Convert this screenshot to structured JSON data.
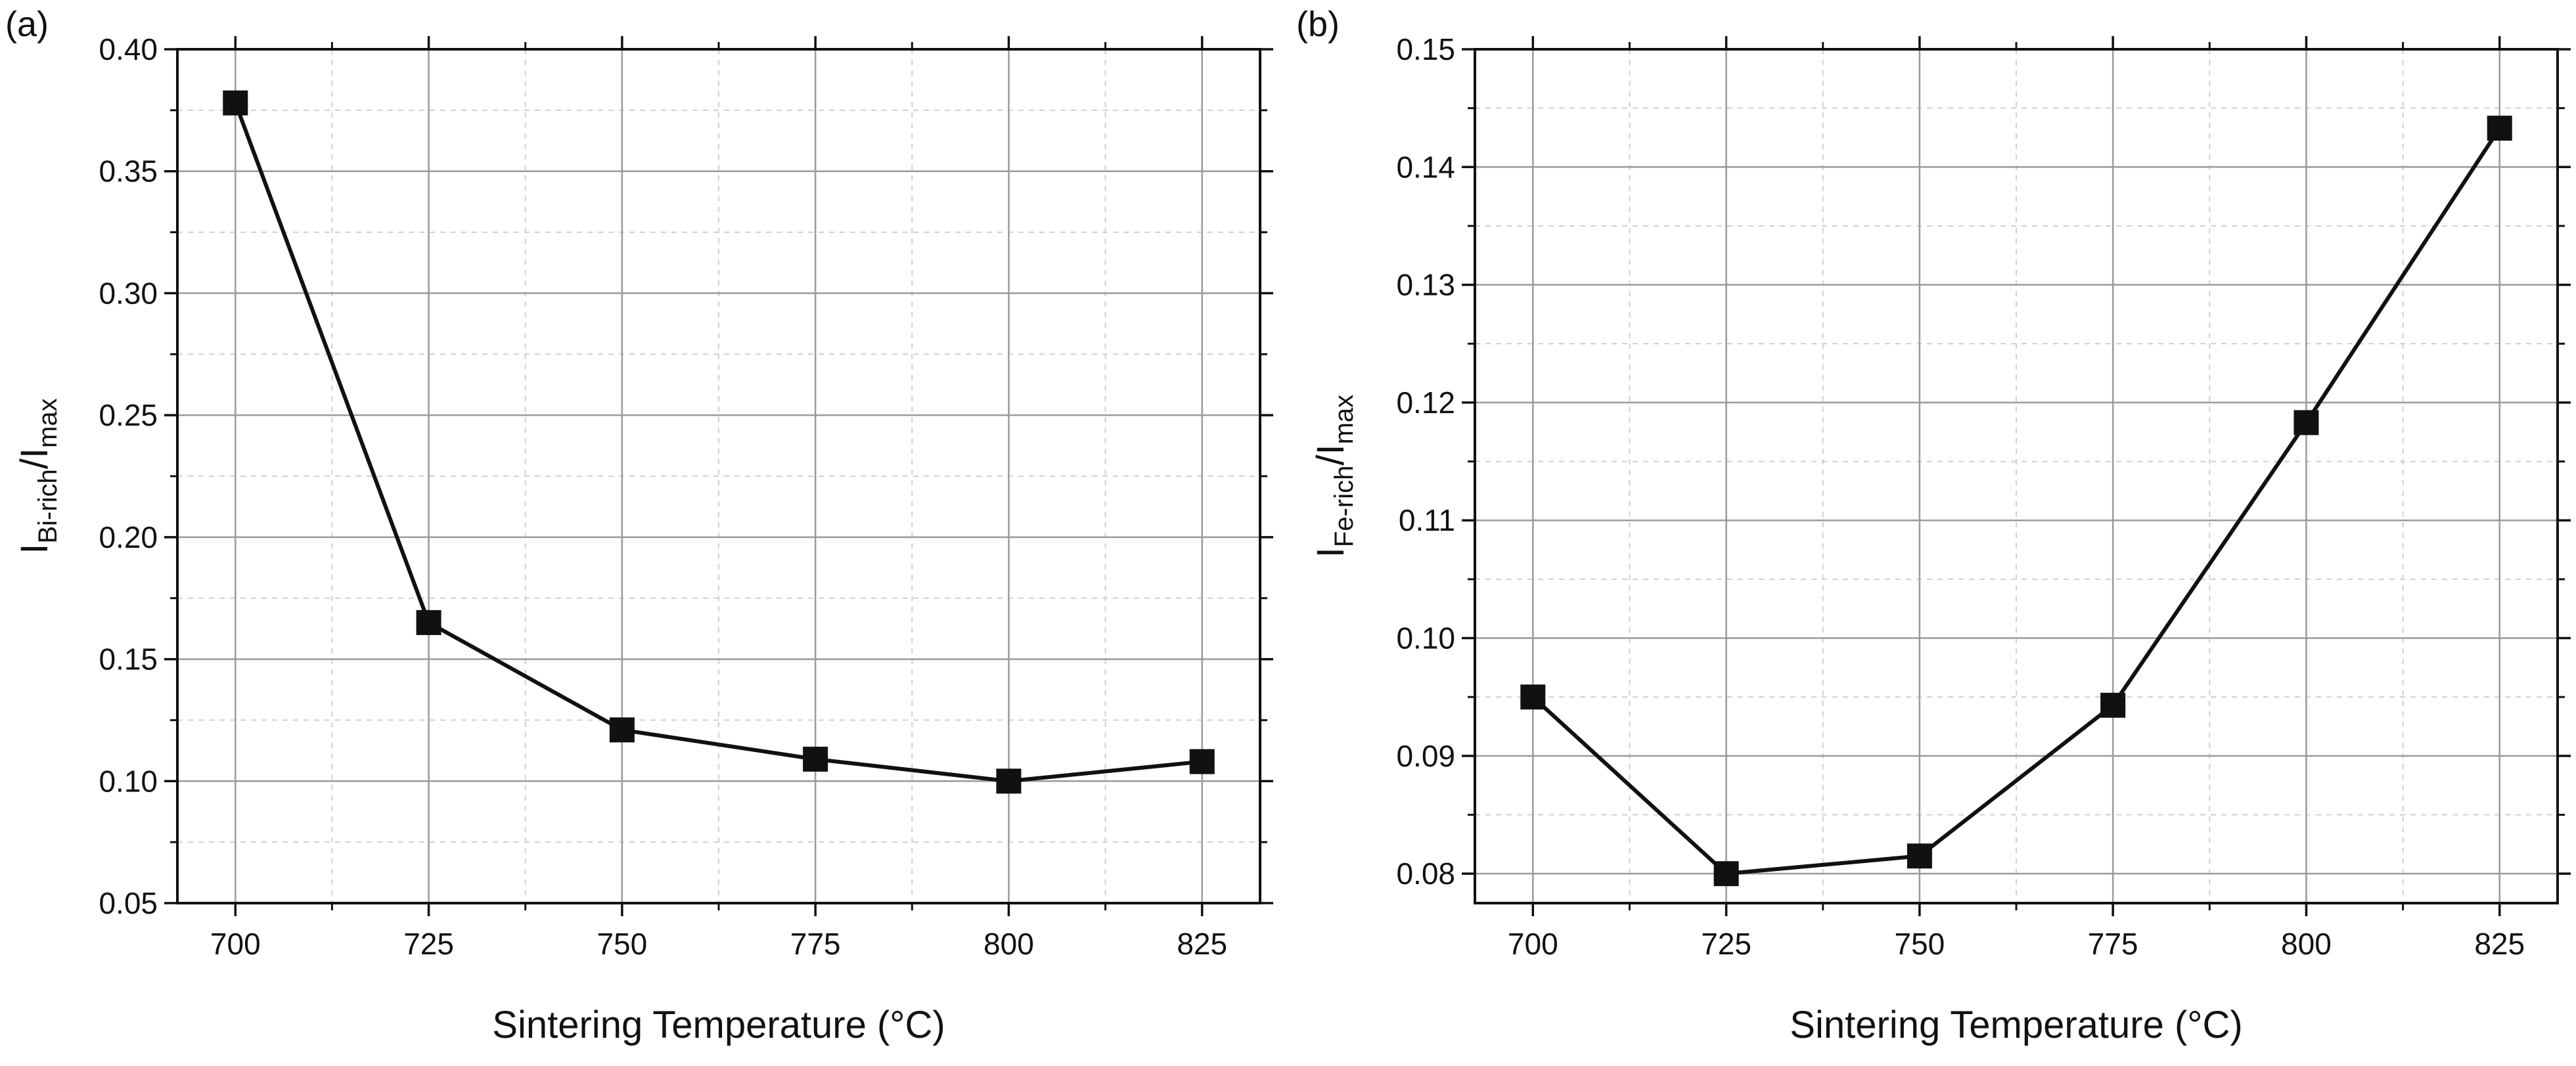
{
  "chart_data": [
    {
      "panel_label": "(a)",
      "type": "line",
      "x": [
        700,
        725,
        750,
        775,
        800,
        825
      ],
      "series": [
        {
          "name": "I_Bi-rich/I_max",
          "values": [
            0.378,
            0.165,
            0.121,
            0.109,
            0.1,
            0.108
          ]
        }
      ],
      "xlabel": "Sintering Temperature (°C)",
      "ylabel": {
        "main": "I",
        "sub": "Bi-rich",
        "sep": "/I",
        "sub2": "max"
      },
      "xlim": [
        692.5,
        832.5
      ],
      "ylim": [
        0.05,
        0.4
      ],
      "xticks": [
        700,
        725,
        750,
        775,
        800,
        825
      ],
      "xtick_labels": [
        "700",
        "725",
        "750",
        "775",
        "800",
        "825"
      ],
      "yticks": [
        0.05,
        0.1,
        0.15,
        0.2,
        0.25,
        0.3,
        0.35,
        0.4
      ],
      "ytick_labels": [
        "0.05",
        "0.10",
        "0.15",
        "0.20",
        "0.25",
        "0.30",
        "0.35",
        "0.40"
      ],
      "grid": true,
      "marker": "square"
    },
    {
      "panel_label": "(b)",
      "type": "line",
      "x": [
        700,
        725,
        750,
        775,
        800,
        825
      ],
      "series": [
        {
          "name": "I_Fe-rich/I_max",
          "values": [
            0.095,
            0.08,
            0.0815,
            0.0943,
            0.1183,
            0.1433
          ]
        }
      ],
      "xlabel": "Sintering Temperature (°C)",
      "ylabel": {
        "main": "I",
        "sub": "Fe-rich",
        "sep": "/I",
        "sub2": "max"
      },
      "xlim": [
        692.5,
        832.5
      ],
      "ylim": [
        0.0775,
        0.15
      ],
      "xticks": [
        700,
        725,
        750,
        775,
        800,
        825
      ],
      "xtick_labels": [
        "700",
        "725",
        "750",
        "775",
        "800",
        "825"
      ],
      "yticks": [
        0.08,
        0.09,
        0.1,
        0.11,
        0.12,
        0.13,
        0.14,
        0.15
      ],
      "ytick_labels": [
        "0.08",
        "0.09",
        "0.10",
        "0.11",
        "0.12",
        "0.13",
        "0.14",
        "0.15"
      ],
      "grid": true,
      "marker": "square"
    }
  ],
  "colors": {
    "line": "#111111",
    "grid": "#9a9a9a",
    "minor_grid": "#cfcfcf",
    "axis": "#111111"
  }
}
